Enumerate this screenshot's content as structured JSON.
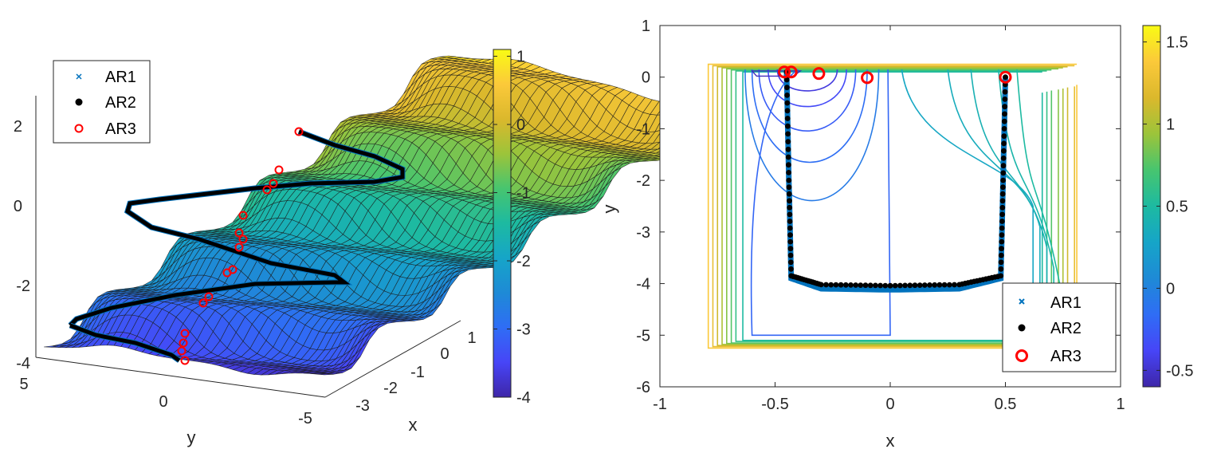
{
  "chart_data": [
    {
      "type": "surface3d",
      "title": "",
      "xlabel": "x",
      "ylabel": "y",
      "x_ticks": [
        "1",
        "0",
        "-1",
        "-2",
        "-3"
      ],
      "y_ticks": [
        "5",
        "0",
        "-5"
      ],
      "z_ticks": [
        "2",
        "0",
        "-2",
        "-4"
      ],
      "colorbar": {
        "ticks": [
          "1",
          "0",
          "-1",
          "-2",
          "-3",
          "-4"
        ],
        "range": [
          -4,
          1.1
        ],
        "colormap": "parula"
      },
      "legend": {
        "placement": "top-left",
        "entries": [
          {
            "name": "AR1",
            "marker": "x",
            "color": "#0072BD"
          },
          {
            "name": "AR2",
            "marker": "dot",
            "color": "#000000"
          },
          {
            "name": "AR3",
            "marker": "circle",
            "color": "#FF0000"
          }
        ]
      },
      "series": [
        {
          "name": "AR1",
          "note_values": "path along ridge of surface"
        },
        {
          "name": "AR2"
        },
        {
          "name": "AR3"
        }
      ]
    },
    {
      "type": "contour",
      "title": "",
      "xlabel": "x",
      "ylabel": "y",
      "xlim": [
        -1,
        1
      ],
      "ylim": [
        -6,
        1
      ],
      "x_ticks": [
        "-1",
        "-0.5",
        "0",
        "0.5",
        "1"
      ],
      "y_ticks": [
        "1",
        "0",
        "-1",
        "-2",
        "-3",
        "-4",
        "-5",
        "-6"
      ],
      "colorbar": {
        "ticks": [
          "1.5",
          "1",
          "0.5",
          "0",
          "-0.5"
        ],
        "range": [
          -0.6,
          1.6
        ],
        "colormap": "parula"
      },
      "legend": {
        "placement": "bottom-right",
        "entries": [
          {
            "name": "AR1",
            "marker": "x",
            "color": "#0072BD"
          },
          {
            "name": "AR2",
            "marker": "dot",
            "color": "#000000"
          },
          {
            "name": "AR3",
            "marker": "circle",
            "color": "#FF0000"
          }
        ]
      },
      "series": [
        {
          "name": "AR1",
          "x": [
            -0.45,
            -0.44,
            -0.43,
            -0.3,
            0,
            0.3,
            0.48,
            0.49,
            0.5
          ],
          "y": [
            0.1,
            -2,
            -3.9,
            -4.1,
            -4.12,
            -4.1,
            -3.9,
            -2,
            0
          ]
        },
        {
          "name": "AR2",
          "x": [
            -0.45,
            -0.44,
            -0.43,
            -0.3,
            0,
            0.3,
            0.48,
            0.49,
            0.5
          ],
          "y": [
            0.1,
            -2,
            -3.85,
            -4.02,
            -4.04,
            -4.02,
            -3.85,
            -2,
            0
          ]
        },
        {
          "name": "AR3",
          "x": [
            -0.46,
            -0.43,
            -0.31,
            -0.1,
            0.5
          ],
          "y": [
            0.1,
            0.1,
            0.07,
            -0.01,
            0.0
          ]
        }
      ]
    }
  ]
}
